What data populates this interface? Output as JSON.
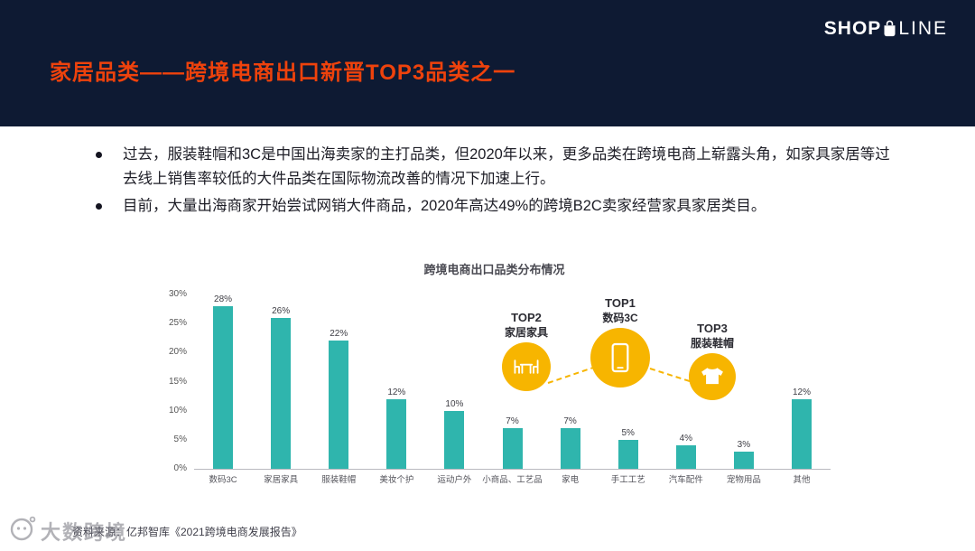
{
  "header": {
    "title": "家居品类——跨境电商出口新晋TOP3品类之一",
    "title_color": "#EE420C",
    "background_color": "#0E1A33",
    "logo": {
      "shop": "SHOP",
      "line": "LINE"
    }
  },
  "bullets": [
    "过去，服装鞋帽和3C是中国出海卖家的主打品类，但2020年以来，更多品类在跨境电商上崭露头角，如家具家居等过去线上销售率较低的大件品类在国际物流改善的情况下加速上行。",
    "目前，大量出海商家开始尝试网销大件商品，2020年高达49%的跨境B2C卖家经营家具家居类目。"
  ],
  "chart_data": {
    "type": "bar",
    "title": "跨境电商出口品类分布情况",
    "categories": [
      "数码3C",
      "家居家具",
      "服装鞋帽",
      "美妆个护",
      "运动户外",
      "小商品、工艺品",
      "家电",
      "手工工艺",
      "汽车配件",
      "宠物用品",
      "其他"
    ],
    "values": [
      28,
      26,
      22,
      12,
      10,
      7,
      7,
      5,
      4,
      3,
      12
    ],
    "unit": "%",
    "ylim": [
      0,
      30
    ],
    "yticks": [
      "0%",
      "5%",
      "10%",
      "15%",
      "20%",
      "25%",
      "30%"
    ],
    "grid": false,
    "bar_color": "#2FB5AD",
    "accent_color": "#F7B500",
    "annotations": [
      {
        "rank": "TOP2",
        "label": "家居家具",
        "icon": "furniture-icon"
      },
      {
        "rank": "TOP1",
        "label": "数码3C",
        "icon": "phone-icon"
      },
      {
        "rank": "TOP3",
        "label": "服装鞋帽",
        "icon": "tshirt-icon"
      }
    ]
  },
  "footer": {
    "source": "资料来源：亿邦智库《2021跨境电商发展报告》"
  },
  "watermark": {
    "text": "大数跨境"
  }
}
